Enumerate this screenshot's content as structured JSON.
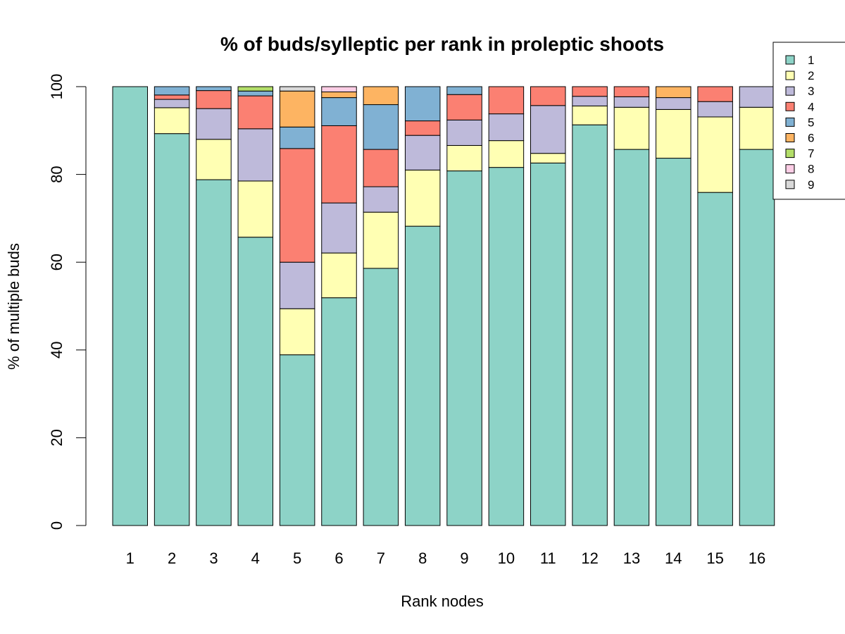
{
  "chart_data": {
    "type": "bar",
    "stacked": true,
    "title": "% of buds/sylleptic per rank in proleptic shoots",
    "xlabel": "Rank nodes",
    "ylabel": "% of multiple buds",
    "ylim": [
      0,
      100
    ],
    "yticks": [
      0,
      20,
      40,
      60,
      80,
      100
    ],
    "grid": false,
    "legend_position": "top-right",
    "categories": [
      "1",
      "2",
      "3",
      "4",
      "5",
      "6",
      "7",
      "8",
      "9",
      "10",
      "11",
      "12",
      "13",
      "14",
      "15",
      "16"
    ],
    "series": [
      {
        "name": "1",
        "color": "#8DD3C7",
        "values": [
          100,
          89.3,
          78.8,
          65.7,
          38.9,
          51.9,
          58.6,
          68.2,
          80.8,
          81.6,
          82.6,
          91.3,
          85.7,
          83.7,
          75.9,
          85.7
        ]
      },
      {
        "name": "2",
        "color": "#FFFFB3",
        "values": [
          0,
          5.9,
          9.2,
          12.8,
          10.5,
          10.2,
          12.8,
          12.8,
          5.8,
          6.1,
          2.2,
          4.3,
          9.6,
          11.1,
          17.2,
          9.6
        ]
      },
      {
        "name": "3",
        "color": "#BEBADA",
        "values": [
          0,
          1.9,
          7.0,
          11.9,
          10.6,
          11.4,
          5.8,
          7.9,
          5.8,
          6.1,
          10.9,
          2.2,
          2.4,
          2.7,
          3.5,
          4.7
        ]
      },
      {
        "name": "4",
        "color": "#FB8072",
        "values": [
          0,
          1.0,
          4.1,
          7.5,
          25.9,
          17.6,
          8.5,
          3.3,
          5.8,
          6.2,
          4.3,
          2.2,
          2.3,
          0,
          3.4,
          0
        ]
      },
      {
        "name": "5",
        "color": "#80B1D3",
        "values": [
          0,
          1.9,
          0.9,
          1.1,
          4.9,
          6.4,
          10.2,
          7.8,
          1.8,
          0,
          0,
          0,
          0,
          0,
          0,
          0
        ]
      },
      {
        "name": "6",
        "color": "#FDB462",
        "values": [
          0,
          0,
          0,
          0,
          8.2,
          1.3,
          4.1,
          0,
          0,
          0,
          0,
          0,
          0,
          2.5,
          0,
          0
        ]
      },
      {
        "name": "7",
        "color": "#B3DE69",
        "values": [
          0,
          0,
          0,
          1.0,
          0,
          0,
          0,
          0,
          0,
          0,
          0,
          0,
          0,
          0,
          0,
          0
        ]
      },
      {
        "name": "8",
        "color": "#FCCDE5",
        "values": [
          0,
          0,
          0,
          0,
          0,
          1.2,
          0,
          0,
          0,
          0,
          0,
          0,
          0,
          0,
          0,
          0
        ]
      },
      {
        "name": "9",
        "color": "#D9D9D9",
        "values": [
          0,
          0,
          0,
          0,
          1.0,
          0,
          0,
          0,
          0,
          0,
          0,
          0,
          0,
          0,
          0,
          0
        ]
      }
    ]
  }
}
